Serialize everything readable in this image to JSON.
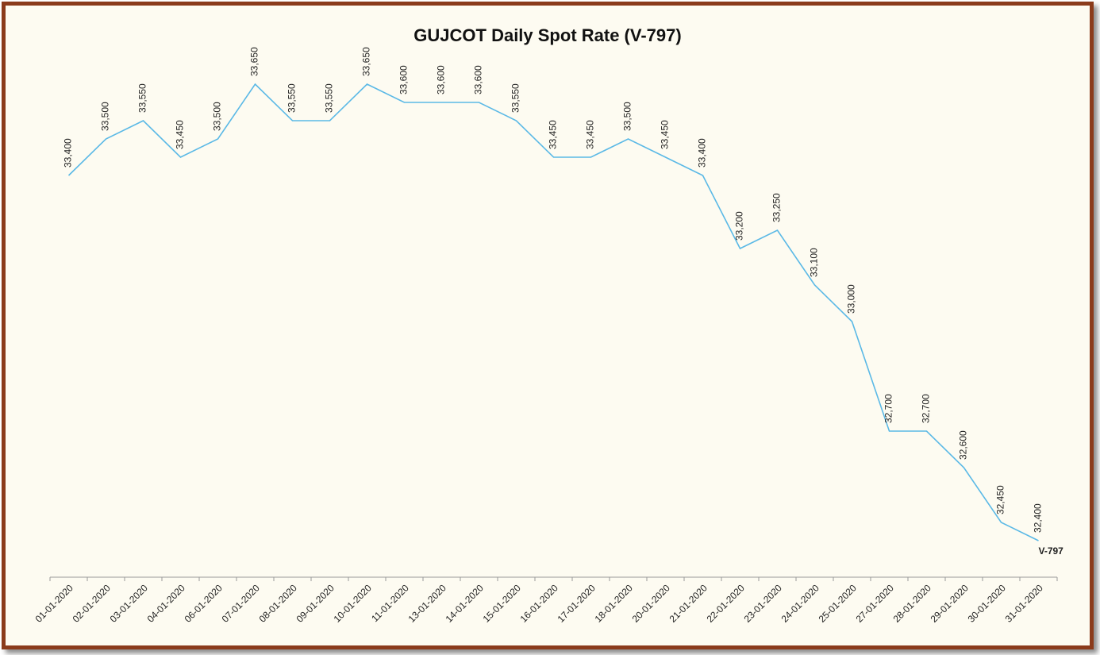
{
  "chart_data": {
    "type": "line",
    "title": "GUJCOT Daily Spot Rate (V-797)",
    "categories": [
      "01-01-2020",
      "02-01-2020",
      "03-01-2020",
      "04-01-2020",
      "06-01-2020",
      "07-01-2020",
      "08-01-2020",
      "09-01-2020",
      "10-01-2020",
      "11-01-2020",
      "13-01-2020",
      "14-01-2020",
      "15-01-2020",
      "16-01-2020",
      "17-01-2020",
      "18-01-2020",
      "20-01-2020",
      "21-01-2020",
      "22-01-2020",
      "23-01-2020",
      "24-01-2020",
      "25-01-2020",
      "27-01-2020",
      "28-01-2020",
      "29-01-2020",
      "30-01-2020",
      "31-01-2020"
    ],
    "series": [
      {
        "name": "V-797",
        "color": "#5bb9e6",
        "values": [
          33400,
          33500,
          33550,
          33450,
          33500,
          33650,
          33550,
          33550,
          33650,
          33600,
          33600,
          33600,
          33550,
          33450,
          33450,
          33500,
          33450,
          33400,
          33200,
          33250,
          33100,
          33000,
          32700,
          32700,
          32600,
          32450,
          32400
        ],
        "value_labels": [
          "33,400",
          "33,500",
          "33,550",
          "33,450",
          "33,500",
          "33,650",
          "33,550",
          "33,550",
          "33,650",
          "33,600",
          "33,600",
          "33,600",
          "33,550",
          "33,450",
          "33,450",
          "33,500",
          "33,450",
          "33,400",
          "33,200",
          "33,250",
          "33,100",
          "33,000",
          "32,700",
          "32,700",
          "32,600",
          "32,450",
          "32,400"
        ]
      }
    ],
    "ylim": [
      32300,
      33800
    ]
  }
}
